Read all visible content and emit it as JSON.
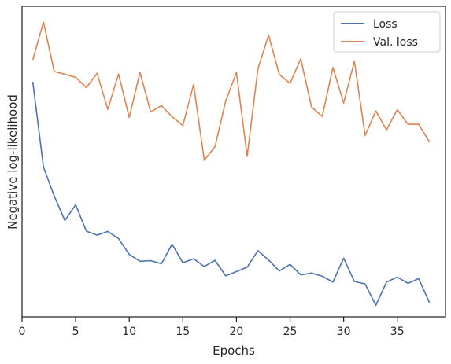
{
  "chart_data": {
    "type": "line",
    "title": "",
    "xlabel": "Epochs",
    "ylabel": "Negative log-likelihood",
    "xlim": [
      0,
      39.5
    ],
    "ylim": [
      0,
      1
    ],
    "xticks": [
      0,
      5,
      10,
      15,
      20,
      25,
      30,
      35
    ],
    "y_tick_labels_shown": false,
    "grid": false,
    "legend_position": "top-right",
    "x": [
      1,
      2,
      3,
      4,
      5,
      6,
      7,
      8,
      9,
      10,
      11,
      12,
      13,
      14,
      15,
      16,
      17,
      18,
      19,
      20,
      21,
      22,
      23,
      24,
      25,
      26,
      27,
      28,
      29,
      30,
      31,
      32,
      33,
      34,
      35,
      36,
      37,
      38
    ],
    "series": [
      {
        "name": "Loss",
        "color": "#4c72b0",
        "values": [
          0.757,
          0.482,
          0.389,
          0.31,
          0.361,
          0.276,
          0.263,
          0.275,
          0.252,
          0.201,
          0.179,
          0.181,
          0.171,
          0.234,
          0.174,
          0.187,
          0.162,
          0.182,
          0.132,
          0.146,
          0.16,
          0.213,
          0.183,
          0.148,
          0.169,
          0.135,
          0.141,
          0.131,
          0.112,
          0.189,
          0.114,
          0.106,
          0.037,
          0.112,
          0.128,
          0.108,
          0.123,
          0.046
        ]
      },
      {
        "name": "Val. loss",
        "color": "#dd8452",
        "values": [
          0.828,
          0.949,
          0.79,
          0.781,
          0.771,
          0.738,
          0.784,
          0.668,
          0.782,
          0.642,
          0.787,
          0.66,
          0.68,
          0.644,
          0.616,
          0.748,
          0.504,
          0.548,
          0.695,
          0.787,
          0.517,
          0.798,
          0.907,
          0.78,
          0.752,
          0.831,
          0.676,
          0.645,
          0.803,
          0.688,
          0.823,
          0.584,
          0.663,
          0.602,
          0.667,
          0.62,
          0.62,
          0.563
        ]
      }
    ]
  }
}
